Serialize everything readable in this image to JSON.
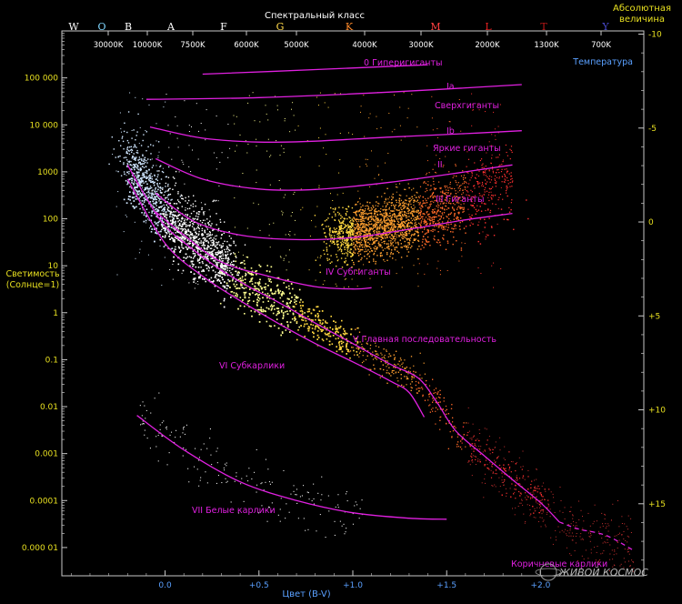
{
  "chart_data": {
    "type": "scatter",
    "title": "Спектральный класс",
    "ylabel": "Светимость\n(Солнце=1)",
    "xlabel": "Цвет (B-V)",
    "right_axis_title": "Абсолютная\nвеличина",
    "temperature_label": "Температура",
    "spectral_classes": [
      {
        "label": "W",
        "color": "#ffffff"
      },
      {
        "label": "O",
        "color": "#7fd6ff"
      },
      {
        "label": "B",
        "color": "#ffffff"
      },
      {
        "label": "A",
        "color": "#ffffff"
      },
      {
        "label": "F",
        "color": "#ffffff"
      },
      {
        "label": "G",
        "color": "#ffd84a"
      },
      {
        "label": "K",
        "color": "#ff8a2a"
      },
      {
        "label": "M",
        "color": "#ff4040"
      },
      {
        "label": "L",
        "color": "#e02020"
      },
      {
        "label": "T",
        "color": "#c01818"
      },
      {
        "label": "Y",
        "color": "#4a4ad0"
      }
    ],
    "temperatures": [
      "30000K",
      "10000K",
      "7500K",
      "6000K",
      "5000K",
      "4000K",
      "3000K",
      "2000K",
      "1300K",
      "700K"
    ],
    "x_ticks": [
      "0.0",
      "+0.5",
      "+1.0",
      "+1.5",
      "+2.0"
    ],
    "x_tick_values": [
      0,
      0.5,
      1,
      1.5,
      2
    ],
    "xlim": [
      -0.55,
      2.55
    ],
    "y_scale": "log",
    "ylim": [
      2.5e-06,
      1000000
    ],
    "y_ticks": [
      "100 000",
      "10 000",
      "1000",
      "100",
      "10",
      "1",
      "0.1",
      "0.01",
      "0.001",
      "0.0001",
      "0.000 01"
    ],
    "y_tick_values": [
      100000,
      10000,
      1000,
      100,
      10,
      1,
      0.1,
      0.01,
      0.001,
      0.0001,
      1e-05
    ],
    "mag_ticks": [
      "-10",
      "-5",
      "0",
      "+5",
      "+10",
      "+15"
    ],
    "mag_tick_values": [
      -10,
      -5,
      0,
      5,
      10,
      15
    ],
    "curves": [
      {
        "id": "0",
        "label": "0  Гиперигиганты",
        "points": [
          [
            0.2,
            120000
          ],
          [
            0.8,
            150000
          ],
          [
            1.4,
            190000
          ]
        ]
      },
      {
        "id": "Ia",
        "label": "Ia",
        "desc": "Сверхгиганты",
        "points": [
          [
            -0.1,
            35000
          ],
          [
            0.5,
            38000
          ],
          [
            1.2,
            50000
          ],
          [
            1.9,
            72000
          ]
        ]
      },
      {
        "id": "Ib",
        "label": "Ib",
        "desc": "Яркие гиганты",
        "points": [
          [
            -0.08,
            9000
          ],
          [
            0.2,
            5200
          ],
          [
            0.5,
            4300
          ],
          [
            0.8,
            4500
          ],
          [
            1.2,
            5500
          ],
          [
            1.6,
            6500
          ],
          [
            1.9,
            7500
          ]
        ]
      },
      {
        "id": "II",
        "label": "II",
        "points": [
          [
            -0.05,
            1900
          ],
          [
            0.2,
            700
          ],
          [
            0.5,
            430
          ],
          [
            0.8,
            420
          ],
          [
            1.2,
            600
          ],
          [
            1.6,
            1000
          ],
          [
            1.85,
            1400
          ]
        ]
      },
      {
        "id": "III",
        "label": "III  Гиганты",
        "points": [
          [
            -0.05,
            350
          ],
          [
            0.15,
            90
          ],
          [
            0.4,
            45
          ],
          [
            0.7,
            36
          ],
          [
            1.0,
            40
          ],
          [
            1.3,
            60
          ],
          [
            1.6,
            95
          ],
          [
            1.85,
            130
          ]
        ]
      },
      {
        "id": "IV",
        "label": "IV  Субгиганты",
        "points": [
          [
            -0.05,
            140
          ],
          [
            0.1,
            45
          ],
          [
            0.3,
            12
          ],
          [
            0.55,
            6
          ],
          [
            0.8,
            3.6
          ],
          [
            1.0,
            3.2
          ],
          [
            1.1,
            3.4
          ]
        ]
      },
      {
        "id": "V",
        "label": "V  Главная последовательность",
        "points": [
          [
            -0.2,
            1400
          ],
          [
            -0.1,
            280
          ],
          [
            0.0,
            70
          ],
          [
            0.15,
            22
          ],
          [
            0.3,
            8
          ],
          [
            0.45,
            3.5
          ],
          [
            0.6,
            1.7
          ],
          [
            0.8,
            0.6
          ],
          [
            1.0,
            0.22
          ],
          [
            1.2,
            0.08
          ],
          [
            1.35,
            0.04
          ],
          [
            1.45,
            0.012
          ],
          [
            1.55,
            0.003
          ],
          [
            1.7,
            0.0009
          ],
          [
            1.85,
            0.00028
          ],
          [
            2.0,
            9e-05
          ],
          [
            2.1,
            3.5e-05
          ]
        ],
        "dashed_tail": [
          [
            2.1,
            3.5e-05
          ],
          [
            2.2,
            2.5e-05
          ],
          [
            2.35,
            1.8e-05
          ],
          [
            2.5,
            8.5e-06
          ]
        ]
      },
      {
        "id": "VI",
        "label": "VI  Субкарлики",
        "points": [
          [
            -0.2,
            700
          ],
          [
            0.0,
            30
          ],
          [
            0.2,
            6
          ],
          [
            0.4,
            1.8
          ],
          [
            0.6,
            0.6
          ],
          [
            0.8,
            0.22
          ],
          [
            1.0,
            0.09
          ],
          [
            1.2,
            0.035
          ],
          [
            1.3,
            0.02
          ],
          [
            1.38,
            0.006
          ]
        ]
      },
      {
        "id": "VII",
        "label": "VII  Белые карлики",
        "points": [
          [
            -0.15,
            0.0065
          ],
          [
            0.1,
            0.0012
          ],
          [
            0.4,
            0.00025
          ],
          [
            0.7,
            0.0001
          ],
          [
            1.0,
            5.5e-05
          ],
          [
            1.3,
            4.2e-05
          ],
          [
            1.5,
            4e-05
          ]
        ]
      }
    ],
    "region_labels": {
      "supergiants": "Сверхгиганты",
      "bright_giants": "Яркие гиганты",
      "brown_dwarfs": "Коричневые карлики"
    },
    "grid": false,
    "watermark": "ЖИВОЙ КОСМОС"
  },
  "colors": {
    "axis": "#c8c8c8",
    "yellow": "#e8e020",
    "magenta": "#e020e0",
    "blue": "#5aa0ff",
    "white": "#ffffff"
  }
}
